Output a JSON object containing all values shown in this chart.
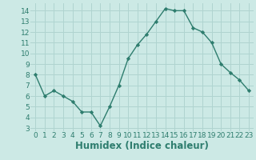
{
  "x": [
    0,
    1,
    2,
    3,
    4,
    5,
    6,
    7,
    8,
    9,
    10,
    11,
    12,
    13,
    14,
    15,
    16,
    17,
    18,
    19,
    20,
    21,
    22,
    23
  ],
  "y": [
    8.0,
    6.0,
    6.5,
    6.0,
    5.5,
    4.5,
    4.5,
    3.2,
    5.0,
    7.0,
    9.5,
    10.8,
    11.8,
    13.0,
    14.2,
    14.0,
    14.0,
    12.4,
    12.0,
    11.0,
    9.0,
    8.2,
    7.5,
    6.5
  ],
  "xlabel": "Humidex (Indice chaleur)",
  "xlim": [
    -0.5,
    23.5
  ],
  "ylim": [
    2.7,
    14.7
  ],
  "yticks": [
    3,
    4,
    5,
    6,
    7,
    8,
    9,
    10,
    11,
    12,
    13,
    14
  ],
  "xticks": [
    0,
    1,
    2,
    3,
    4,
    5,
    6,
    7,
    8,
    9,
    10,
    11,
    12,
    13,
    14,
    15,
    16,
    17,
    18,
    19,
    20,
    21,
    22,
    23
  ],
  "line_color": "#2e7d6e",
  "marker_color": "#2e7d6e",
  "bg_color": "#cce9e5",
  "grid_color": "#b0d4d0",
  "tick_label_color": "#2e7d6e",
  "xlabel_color": "#2e7d6e",
  "tick_label_fontsize": 6.5,
  "xlabel_fontsize": 8.5
}
